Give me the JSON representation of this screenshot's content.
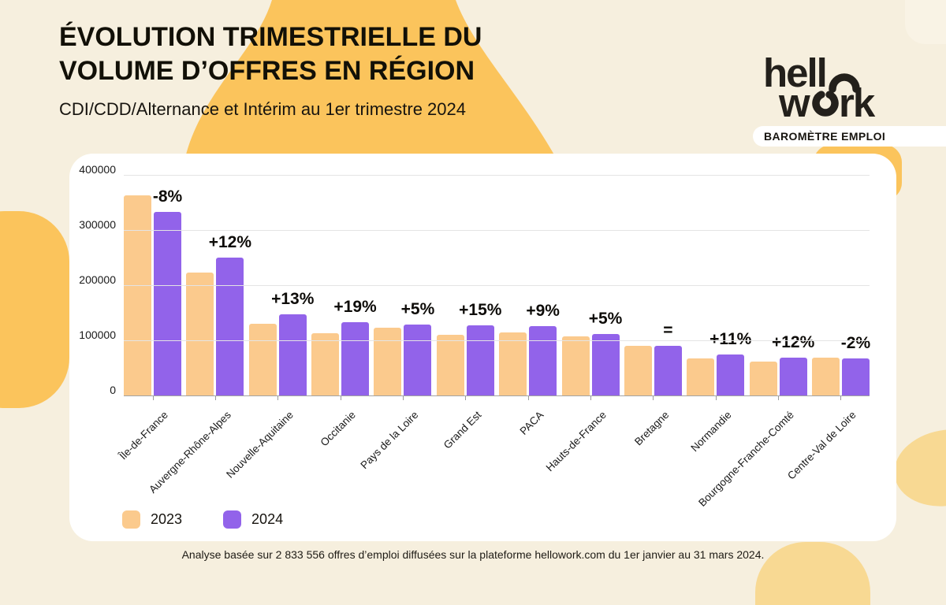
{
  "page": {
    "background": "#F6EFDE",
    "card_background": "#FFFFFF"
  },
  "header": {
    "title_line1": "ÉVOLUTION TRIMESTRIELLE DU",
    "title_line2": "VOLUME D’OFFRES EN RÉGION",
    "subtitle": "CDI/CDD/Alternance et Intérim au 1er trimestre 2024"
  },
  "brand": {
    "logo_line1": "hell",
    "logo_line2_w": "w",
    "logo_line2_rk": "rk",
    "badge": "BAROMÈTRE EMPLOI"
  },
  "legend": [
    {
      "label": "2023",
      "color": "#FBCA8D"
    },
    {
      "label": "2024",
      "color": "#9263EA"
    }
  ],
  "footer": {
    "note": "Analyse basée sur 2 833 556 offres d’emploi diffusées sur la plateforme hellowork.com du 1er janvier au 31 mars 2024."
  },
  "chart_data": {
    "type": "bar",
    "title": "Évolution trimestrielle du volume d’offres en région",
    "categories": [
      "Île-de-France",
      "Auvergne-Rhône-Alpes",
      "Nouvelle-Aquitaine",
      "Occitanie",
      "Pays de la Loire",
      "Grand Est",
      "PACA",
      "Hauts-de-France",
      "Bretagne",
      "Normandie",
      "Bourgogne-Franche-Comté",
      "Centre-Val de Loire"
    ],
    "series": [
      {
        "name": "2023",
        "color": "#FBCA8D",
        "values": [
          365000,
          225000,
          131000,
          114000,
          124000,
          112000,
          116000,
          108000,
          92000,
          69000,
          63000,
          70000
        ]
      },
      {
        "name": "2024",
        "color": "#9263EA",
        "values": [
          335000,
          252000,
          148000,
          135000,
          130000,
          129000,
          127000,
          113000,
          92000,
          76000,
          70000,
          68000
        ]
      }
    ],
    "change_labels": [
      "-8%",
      "+12%",
      "+13%",
      "+19%",
      "+5%",
      "+15%",
      "+9%",
      "+5%",
      "=",
      "+11%",
      "+12%",
      "-2%"
    ],
    "xlabel": "",
    "ylabel": "",
    "ylim": [
      0,
      400000
    ],
    "yticks": [
      0,
      100000,
      200000,
      300000,
      400000
    ],
    "ytick_labels": [
      "0",
      "100000",
      "200000",
      "300000",
      "400000"
    ],
    "grid": true,
    "legend_position": "bottom-left"
  },
  "colors": {
    "accent_yellow": "#FBC45C",
    "accent_yellow_light": "#F8D993",
    "bar_2023": "#FBCA8D",
    "bar_2024": "#9263EA"
  }
}
